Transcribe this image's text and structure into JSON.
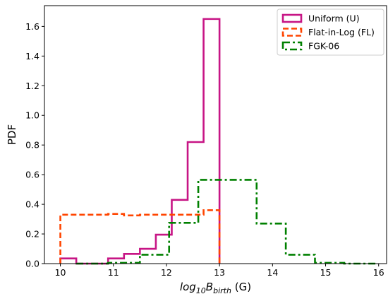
{
  "chart_data": {
    "type": "histogram",
    "xlabel_parts": {
      "prefix": "log",
      "base": "10",
      "var": "B",
      "sub": "birth",
      "unit": " (G)"
    },
    "ylabel": "PDF",
    "xlim": [
      9.7,
      16.15
    ],
    "ylim": [
      0,
      1.74
    ],
    "xticks": [
      10,
      11,
      12,
      13,
      14,
      15,
      16
    ],
    "yticks": [
      0.0,
      0.2,
      0.4,
      0.6,
      0.8,
      1.0,
      1.2,
      1.4,
      1.6
    ],
    "legend_position": "top-right",
    "grid": false,
    "series": [
      {
        "name": "Uniform (U)",
        "color": "#c71585",
        "linestyle": "solid",
        "edges": [
          10.0,
          10.3,
          10.9,
          11.2,
          11.5,
          11.8,
          12.1,
          12.4,
          12.7,
          13.0
        ],
        "values": [
          0.035,
          0.0,
          0.035,
          0.065,
          0.1,
          0.195,
          0.43,
          0.82,
          1.65
        ]
      },
      {
        "name": "Flat-in-Log (FL)",
        "color": "#ff4500",
        "linestyle": "dashed",
        "edges": [
          10.0,
          10.9,
          11.2,
          11.5,
          11.8,
          12.1,
          12.7,
          13.0
        ],
        "values": [
          0.33,
          0.335,
          0.325,
          0.33,
          0.33,
          0.33,
          0.36
        ]
      },
      {
        "name": "FGK-06",
        "color": "#008000",
        "linestyle": "dashdot",
        "edges": [
          10.3,
          10.9,
          11.5,
          12.05,
          12.6,
          13.15,
          13.7,
          14.25,
          14.8,
          15.35,
          15.95
        ],
        "values": [
          0.0,
          0.005,
          0.06,
          0.275,
          0.565,
          0.565,
          0.27,
          0.06,
          0.005,
          0.0
        ]
      }
    ]
  }
}
